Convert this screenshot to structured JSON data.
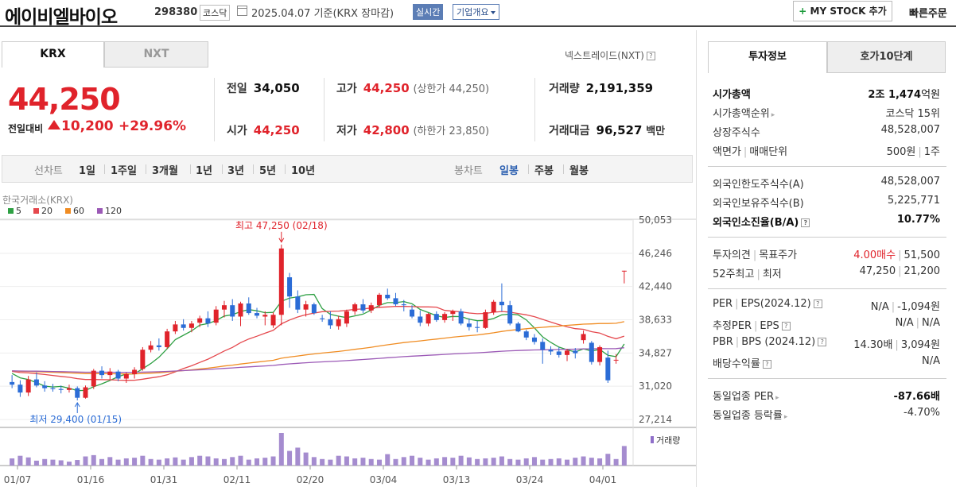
{
  "header": {
    "name": "에이비엘바이오",
    "code": "298380",
    "market": "코스닥",
    "date": "2025.04.07 기준(KRX 장마감)",
    "realtime_label": "실시간",
    "company_label": "기업개요",
    "mystock_label": "MY STOCK 추가",
    "quick_order_label": "빠른주문"
  },
  "tabs": {
    "krx": "KRX",
    "nxt": "NXT",
    "nxt_link": "넥스트레이드(NXT)"
  },
  "price": {
    "current": "44,250",
    "change_label": "전일대비",
    "change": "10,200",
    "change_pct": "+29.96%"
  },
  "info": {
    "prev_label": "전일",
    "prev": "34,050",
    "high_label": "고가",
    "high": "44,250",
    "upper_limit": "(상한가 44,250)",
    "volume_label": "거래량",
    "volume": "2,191,359",
    "open_label": "시가",
    "open": "44,250",
    "low_label": "저가",
    "low": "42,800",
    "lower_limit": "(하한가 23,850)",
    "amount_label": "거래대금",
    "amount": "96,527",
    "amount_unit": "백만"
  },
  "period_bar": {
    "line_label": "선차트",
    "periods": [
      "1일",
      "1주일",
      "3개월",
      "1년",
      "3년",
      "5년",
      "10년"
    ],
    "candle_label": "봉차트",
    "candle_periods": [
      "일봉",
      "주봉",
      "월봉"
    ]
  },
  "chart_data": {
    "type": "candlestick",
    "source_label": "한국거래소(KRX)",
    "legend": [
      {
        "name": "5",
        "color": "#2ea043"
      },
      {
        "name": "20",
        "color": "#e5484d"
      },
      {
        "name": "60",
        "color": "#f08c22"
      },
      {
        "name": "120",
        "color": "#9b59b6"
      }
    ],
    "y_ticks": [
      "50,053",
      "46,246",
      "42,440",
      "38,633",
      "34,827",
      "31,020",
      "27,214"
    ],
    "ylim": [
      27214,
      50053
    ],
    "x_ticks": [
      "01/07",
      "01/16",
      "01/31",
      "02/11",
      "02/20",
      "03/04",
      "03/13",
      "03/24",
      "04/01"
    ],
    "high_annotation": "최고 47,250 (02/18)",
    "low_annotation": "최저 29,400 (01/15)",
    "volume_label": "거래량",
    "candles": [
      {
        "o": 31500,
        "h": 32300,
        "l": 30800,
        "c": 31200
      },
      {
        "o": 31200,
        "h": 31700,
        "l": 29800,
        "c": 30300
      },
      {
        "o": 30300,
        "h": 32200,
        "l": 29900,
        "c": 31800
      },
      {
        "o": 31800,
        "h": 32600,
        "l": 30900,
        "c": 31100
      },
      {
        "o": 31100,
        "h": 31600,
        "l": 30400,
        "c": 30800
      },
      {
        "o": 30800,
        "h": 31300,
        "l": 30400,
        "c": 30700
      },
      {
        "o": 30700,
        "h": 31100,
        "l": 30200,
        "c": 30600
      },
      {
        "o": 30600,
        "h": 31200,
        "l": 30300,
        "c": 30800
      },
      {
        "o": 30800,
        "h": 31000,
        "l": 29400,
        "c": 29700
      },
      {
        "o": 29700,
        "h": 31100,
        "l": 29600,
        "c": 30900
      },
      {
        "o": 31000,
        "h": 33000,
        "l": 30700,
        "c": 32800
      },
      {
        "o": 32800,
        "h": 33300,
        "l": 31900,
        "c": 32300
      },
      {
        "o": 32300,
        "h": 33100,
        "l": 31800,
        "c": 32700
      },
      {
        "o": 32700,
        "h": 32900,
        "l": 31600,
        "c": 31900
      },
      {
        "o": 31900,
        "h": 32600,
        "l": 31400,
        "c": 32400
      },
      {
        "o": 32400,
        "h": 33200,
        "l": 31900,
        "c": 32900
      },
      {
        "o": 33000,
        "h": 35500,
        "l": 32800,
        "c": 35200
      },
      {
        "o": 35200,
        "h": 36200,
        "l": 34900,
        "c": 35700
      },
      {
        "o": 35700,
        "h": 36500,
        "l": 35100,
        "c": 35500
      },
      {
        "o": 35500,
        "h": 37600,
        "l": 35300,
        "c": 37300
      },
      {
        "o": 37300,
        "h": 38500,
        "l": 37000,
        "c": 38100
      },
      {
        "o": 38100,
        "h": 38700,
        "l": 37400,
        "c": 37700
      },
      {
        "o": 37700,
        "h": 38500,
        "l": 37200,
        "c": 38200
      },
      {
        "o": 38300,
        "h": 39100,
        "l": 37800,
        "c": 38800
      },
      {
        "o": 38800,
        "h": 39600,
        "l": 37800,
        "c": 38200
      },
      {
        "o": 38300,
        "h": 40200,
        "l": 38000,
        "c": 39800
      },
      {
        "o": 39800,
        "h": 40800,
        "l": 38900,
        "c": 40300
      },
      {
        "o": 40300,
        "h": 41000,
        "l": 38500,
        "c": 39000
      },
      {
        "o": 39000,
        "h": 40700,
        "l": 37900,
        "c": 40500
      },
      {
        "o": 40500,
        "h": 41200,
        "l": 39200,
        "c": 39400
      },
      {
        "o": 39400,
        "h": 40000,
        "l": 38800,
        "c": 39100
      },
      {
        "o": 39000,
        "h": 39600,
        "l": 38000,
        "c": 39200
      },
      {
        "o": 38000,
        "h": 39500,
        "l": 37700,
        "c": 39200
      },
      {
        "o": 39200,
        "h": 47250,
        "l": 38000,
        "c": 46800
      },
      {
        "o": 43500,
        "h": 44000,
        "l": 40000,
        "c": 41300
      },
      {
        "o": 41300,
        "h": 42000,
        "l": 39400,
        "c": 39800
      },
      {
        "o": 39800,
        "h": 40800,
        "l": 39000,
        "c": 40400
      },
      {
        "o": 40400,
        "h": 40600,
        "l": 39200,
        "c": 39400
      },
      {
        "o": 38800,
        "h": 39200,
        "l": 38400,
        "c": 38700
      },
      {
        "o": 38700,
        "h": 39600,
        "l": 37600,
        "c": 38000
      },
      {
        "o": 37900,
        "h": 39100,
        "l": 37500,
        "c": 38700
      },
      {
        "o": 38200,
        "h": 39800,
        "l": 37800,
        "c": 39600
      },
      {
        "o": 39600,
        "h": 40600,
        "l": 39200,
        "c": 40400
      },
      {
        "o": 40400,
        "h": 41000,
        "l": 39400,
        "c": 39700
      },
      {
        "o": 39700,
        "h": 40600,
        "l": 39400,
        "c": 40300
      },
      {
        "o": 40300,
        "h": 41700,
        "l": 40000,
        "c": 41500
      },
      {
        "o": 41500,
        "h": 42200,
        "l": 40900,
        "c": 41100
      },
      {
        "o": 41100,
        "h": 41700,
        "l": 40200,
        "c": 40400
      },
      {
        "o": 40400,
        "h": 40900,
        "l": 39600,
        "c": 40300
      },
      {
        "o": 39800,
        "h": 40300,
        "l": 38800,
        "c": 39000
      },
      {
        "o": 39000,
        "h": 39700,
        "l": 37900,
        "c": 38300
      },
      {
        "o": 38200,
        "h": 39400,
        "l": 37900,
        "c": 39300
      },
      {
        "o": 39300,
        "h": 39600,
        "l": 38400,
        "c": 38600
      },
      {
        "o": 38600,
        "h": 39500,
        "l": 38300,
        "c": 39300
      },
      {
        "o": 39300,
        "h": 39800,
        "l": 38500,
        "c": 39600
      },
      {
        "o": 39600,
        "h": 39900,
        "l": 38000,
        "c": 38200
      },
      {
        "o": 38200,
        "h": 38800,
        "l": 37400,
        "c": 37800
      },
      {
        "o": 37800,
        "h": 38500,
        "l": 37200,
        "c": 37700
      },
      {
        "o": 37700,
        "h": 39800,
        "l": 37600,
        "c": 39500
      },
      {
        "o": 39500,
        "h": 40900,
        "l": 39200,
        "c": 40700
      },
      {
        "o": 40700,
        "h": 42800,
        "l": 39600,
        "c": 40300
      },
      {
        "o": 40300,
        "h": 40800,
        "l": 38000,
        "c": 38200
      },
      {
        "o": 38200,
        "h": 38400,
        "l": 37200,
        "c": 37300
      },
      {
        "o": 37300,
        "h": 37500,
        "l": 36300,
        "c": 36600
      },
      {
        "o": 36600,
        "h": 37000,
        "l": 35800,
        "c": 36100
      },
      {
        "o": 36100,
        "h": 36500,
        "l": 33600,
        "c": 35200
      },
      {
        "o": 35200,
        "h": 35600,
        "l": 34600,
        "c": 35000
      },
      {
        "o": 35000,
        "h": 35500,
        "l": 34300,
        "c": 34600
      },
      {
        "o": 34600,
        "h": 35300,
        "l": 33900,
        "c": 35100
      },
      {
        "o": 35100,
        "h": 35400,
        "l": 34200,
        "c": 34800
      },
      {
        "o": 36300,
        "h": 37400,
        "l": 35900,
        "c": 37000
      },
      {
        "o": 36000,
        "h": 36200,
        "l": 33500,
        "c": 33800
      },
      {
        "o": 33800,
        "h": 35700,
        "l": 33400,
        "c": 35500
      },
      {
        "o": 34300,
        "h": 35100,
        "l": 31400,
        "c": 31700
      },
      {
        "o": 34000,
        "h": 34700,
        "l": 33600,
        "c": 34050
      },
      {
        "o": 44250,
        "h": 44250,
        "l": 42800,
        "c": 44250
      }
    ],
    "volumes": [
      22,
      30,
      25,
      15,
      20,
      18,
      16,
      12,
      17,
      28,
      32,
      20,
      26,
      18,
      22,
      24,
      30,
      20,
      18,
      22,
      25,
      18,
      26,
      30,
      28,
      22,
      20,
      26,
      30,
      18,
      22,
      24,
      28,
      100,
      45,
      55,
      40,
      26,
      20,
      18,
      30,
      28,
      22,
      24,
      20,
      18,
      35,
      20,
      26,
      30,
      24,
      18,
      22,
      26,
      24,
      30,
      25,
      20,
      22,
      24,
      28,
      20,
      18,
      22,
      26,
      18,
      20,
      22,
      18,
      24,
      28,
      24,
      22,
      36,
      20,
      60
    ]
  },
  "right_panel": {
    "tab_active": "투자정보",
    "tab_other": "호가10단계",
    "market_cap_label": "시가총액",
    "market_cap_pre": "2조",
    "market_cap_num": "1,474",
    "market_cap_unit": "억원",
    "rank_label": "시가총액순위",
    "rank": "코스닥 15위",
    "shares_label": "상장주식수",
    "shares": "48,528,007",
    "face_label": "액면가",
    "unit_label": "매매단위",
    "face": "500원",
    "unit": "1주",
    "foreign_limit_label": "외국인한도주식수(A)",
    "foreign_limit": "48,528,007",
    "foreign_hold_label": "외국인보유주식수(B)",
    "foreign_hold": "5,225,771",
    "foreign_ratio_label": "외국인소진율(B/A)",
    "foreign_ratio": "10.77%",
    "opinion_label": "투자의견",
    "target_label": "목표주가",
    "opinion": "4.00매수",
    "target": "51,500",
    "week52_label": "52주최고",
    "week52_low_label": "최저",
    "week52_high": "47,250",
    "week52_low": "21,200",
    "per_label": "PER",
    "eps_label": "EPS(2024.12)",
    "per": "N/A",
    "eps": "-1,094원",
    "est_per_label": "추정PER",
    "est_eps_label": "EPS",
    "est_per": "N/A",
    "est_eps": "N/A",
    "pbr_label": "PBR",
    "bps_label": "BPS (2024.12)",
    "pbr": "14.30배",
    "bps": "3,094원",
    "dividend_label": "배당수익률",
    "dividend": "N/A",
    "industry_per_label": "동일업종 PER",
    "industry_per": "-87.66배",
    "industry_rate_label": "동일업종 등락률",
    "industry_rate": "-4.70%"
  }
}
